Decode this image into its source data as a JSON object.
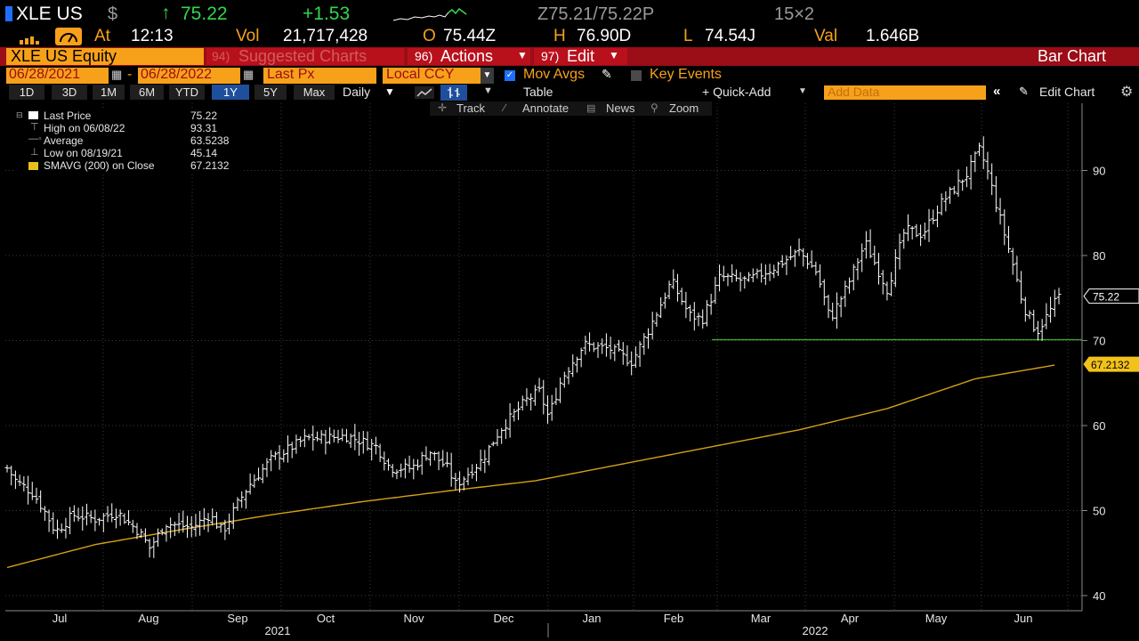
{
  "header": {
    "ticker": "XLE US",
    "currency_symbol": "$",
    "last_price": "75.22",
    "change": "+1.53",
    "bid_ask": "Z75.21/75.22P",
    "size": "15×2",
    "at_label": "At",
    "time": "12:13",
    "vol_label": "Vol",
    "volume": "21,717,428",
    "open_label": "O",
    "open": "75.44Z",
    "high_label": "H",
    "high": "76.90D",
    "low_label": "L",
    "low": "74.54J",
    "val_label": "Val",
    "value": "1.646B"
  },
  "toolbar": {
    "security": "XLE US Equity",
    "suggested_num": "94)",
    "suggested": "Suggested Charts",
    "actions_num": "96)",
    "actions": "Actions",
    "edit_num": "97)",
    "edit": "Edit",
    "chart_type": "Bar Chart"
  },
  "settings": {
    "start_date": "06/28/2021",
    "end_date": "06/28/2022",
    "price_field": "Last Px",
    "currency": "Local CCY",
    "mov_avgs": "Mov Avgs",
    "key_events": "Key Events"
  },
  "ranges": {
    "items": [
      "1D",
      "3D",
      "1M",
      "6M",
      "YTD",
      "1Y",
      "5Y",
      "Max"
    ],
    "selected": "1Y",
    "frequency": "Daily",
    "table": "Table",
    "quick_add": "+ Quick-Add",
    "add_data_placeholder": "Add Data",
    "edit_chart": "Edit Chart"
  },
  "tools": {
    "track": "Track",
    "annotate": "Annotate",
    "news": "News",
    "zoom": "Zoom"
  },
  "legend": {
    "last_price_label": "Last Price",
    "last_price": "75.22",
    "high_label": "High on 06/08/22",
    "high": "93.31",
    "average_label": "Average",
    "average": "63.5238",
    "low_label": "Low on 08/19/21",
    "low": "45.14",
    "sma_label": "SMAVG (200)  on Close",
    "sma": "67.2132"
  },
  "chart_data": {
    "type": "bar",
    "title": "XLE US Equity",
    "y_axis_ticks": [
      40,
      50,
      60,
      70,
      80,
      90
    ],
    "ylim": [
      38,
      97
    ],
    "month_labels": [
      "Jul",
      "Aug",
      "Sep",
      "Oct",
      "Nov",
      "Dec",
      "Jan",
      "Feb",
      "Mar",
      "Apr",
      "May",
      "Jun"
    ],
    "year_labels": [
      "2021",
      "2022"
    ],
    "price_anchors": [
      {
        "month": 0.0,
        "close": 55.0
      },
      {
        "month": 0.1,
        "close": 53.5
      },
      {
        "month": 0.3,
        "close": 52.0
      },
      {
        "month": 0.45,
        "close": 49.5
      },
      {
        "month": 0.55,
        "close": 47.5
      },
      {
        "month": 0.75,
        "close": 49.5
      },
      {
        "month": 1.0,
        "close": 49.0
      },
      {
        "month": 1.25,
        "close": 49.8
      },
      {
        "month": 1.5,
        "close": 47.5
      },
      {
        "month": 1.62,
        "close": 45.6
      },
      {
        "month": 1.8,
        "close": 48.5
      },
      {
        "month": 2.1,
        "close": 48.0
      },
      {
        "month": 2.3,
        "close": 49.5
      },
      {
        "month": 2.45,
        "close": 47.5
      },
      {
        "month": 2.6,
        "close": 50.5
      },
      {
        "month": 2.75,
        "close": 53.0
      },
      {
        "month": 3.0,
        "close": 56.0
      },
      {
        "month": 3.4,
        "close": 58.5
      },
      {
        "month": 3.6,
        "close": 58.5
      },
      {
        "month": 3.85,
        "close": 58.8
      },
      {
        "month": 4.2,
        "close": 57.5
      },
      {
        "month": 4.35,
        "close": 55.0
      },
      {
        "month": 4.6,
        "close": 55.0
      },
      {
        "month": 4.8,
        "close": 57.0
      },
      {
        "month": 5.0,
        "close": 55.0
      },
      {
        "month": 5.1,
        "close": 53.0
      },
      {
        "month": 5.25,
        "close": 54.5
      },
      {
        "month": 5.4,
        "close": 56.0
      },
      {
        "month": 5.6,
        "close": 59.5
      },
      {
        "month": 5.9,
        "close": 63.0
      },
      {
        "month": 6.05,
        "close": 64.0
      },
      {
        "month": 6.15,
        "close": 61.0
      },
      {
        "month": 6.3,
        "close": 65.5
      },
      {
        "month": 6.55,
        "close": 69.5
      },
      {
        "month": 6.85,
        "close": 69.0
      },
      {
        "month": 7.1,
        "close": 67.5
      },
      {
        "month": 7.3,
        "close": 71.5
      },
      {
        "month": 7.55,
        "close": 77.0
      },
      {
        "month": 7.75,
        "close": 73.0
      },
      {
        "month": 7.9,
        "close": 72.5
      },
      {
        "month": 8.1,
        "close": 77.5
      },
      {
        "month": 8.4,
        "close": 77.0
      },
      {
        "month": 8.7,
        "close": 78.5
      },
      {
        "month": 9.0,
        "close": 80.5
      },
      {
        "month": 9.2,
        "close": 78.0
      },
      {
        "month": 9.35,
        "close": 72.5
      },
      {
        "month": 9.55,
        "close": 76.5
      },
      {
        "month": 9.75,
        "close": 81.5
      },
      {
        "month": 10.0,
        "close": 76.0
      },
      {
        "month": 10.2,
        "close": 83.0
      },
      {
        "month": 10.4,
        "close": 82.5
      },
      {
        "month": 10.6,
        "close": 86.0
      },
      {
        "month": 10.9,
        "close": 89.5
      },
      {
        "month": 11.05,
        "close": 92.5
      },
      {
        "month": 11.15,
        "close": 89.5
      },
      {
        "month": 11.25,
        "close": 85.5
      },
      {
        "month": 11.4,
        "close": 80.0
      },
      {
        "month": 11.55,
        "close": 74.0
      },
      {
        "month": 11.7,
        "close": 71.0
      },
      {
        "month": 11.85,
        "close": 73.5
      },
      {
        "month": 11.95,
        "close": 75.2
      }
    ],
    "series": [
      {
        "name": "Last Price",
        "type": "ohlc",
        "color": "#ffffff",
        "last": 75.22
      },
      {
        "name": "SMAVG (200)",
        "type": "line",
        "color": "#d4a017",
        "last": 67.2132,
        "anchors": [
          {
            "month": 0.0,
            "value": 43.3
          },
          {
            "month": 1.0,
            "value": 46.0
          },
          {
            "month": 2.0,
            "value": 47.8
          },
          {
            "month": 3.0,
            "value": 49.5
          },
          {
            "month": 4.0,
            "value": 51.0
          },
          {
            "month": 5.0,
            "value": 52.3
          },
          {
            "month": 6.0,
            "value": 53.5
          },
          {
            "month": 7.0,
            "value": 55.5
          },
          {
            "month": 8.0,
            "value": 57.5
          },
          {
            "month": 9.0,
            "value": 59.5
          },
          {
            "month": 10.0,
            "value": 62.0
          },
          {
            "month": 11.0,
            "value": 65.5
          },
          {
            "month": 11.95,
            "value": 67.2
          }
        ]
      },
      {
        "name": "Horizontal",
        "type": "hline",
        "color": "#3fa52b",
        "value": 70.1
      }
    ],
    "price_tag": "75.22",
    "sma_tag": "67.2132"
  }
}
